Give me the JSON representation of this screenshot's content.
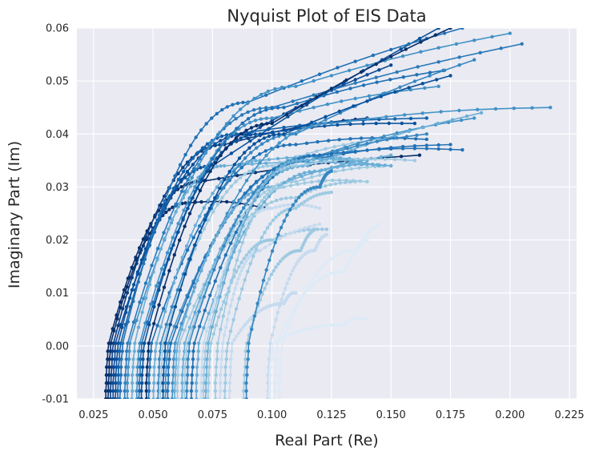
{
  "chart_data": {
    "type": "line",
    "title": "Nyquist Plot of EIS Data",
    "xlabel": "Real Part (Re)",
    "ylabel": "Imaginary Part (Im)",
    "xlim": [
      0.018,
      0.228
    ],
    "ylim": [
      -0.01,
      0.06
    ],
    "xticks": [
      "0.025",
      "0.050",
      "0.075",
      "0.100",
      "0.125",
      "0.150",
      "0.175",
      "0.200",
      "0.225"
    ],
    "yticks": [
      "-0.01",
      "0.00",
      "0.01",
      "0.02",
      "0.03",
      "0.04",
      "0.05",
      "0.06"
    ],
    "grid": true,
    "legend": "none",
    "colormap": "Blues",
    "colors": {
      "background": "#eaeaf2",
      "grid": "#ffffff",
      "text": "#262626"
    },
    "series": [
      {
        "offset": 0.03,
        "k1": 0.2,
        "p1": [
          0.07,
          0.031
        ],
        "p2": [
          0.162,
          0.036
        ],
        "color": "#08306b"
      },
      {
        "offset": 0.031,
        "k1": 0.18,
        "p1": [
          0.065,
          0.027
        ],
        "p2": [
          0.097,
          0.026
        ],
        "color": "#08306b"
      },
      {
        "offset": 0.032,
        "k1": 0.16,
        "p1": [
          0.08,
          0.038
        ],
        "p2": [
          0.14,
          0.043
        ],
        "color": "#0a3e83"
      },
      {
        "offset": 0.033,
        "k1": 0.15,
        "p1": [
          0.09,
          0.04
        ],
        "p2": [
          0.15,
          0.053
        ],
        "color": "#0b4a97"
      },
      {
        "offset": 0.034,
        "k1": 0.16,
        "p1": [
          0.075,
          0.034
        ],
        "p2": [
          0.17,
          0.06
        ],
        "color": "#08519c"
      },
      {
        "offset": 0.035,
        "k1": 0.14,
        "p1": [
          0.085,
          0.04
        ],
        "p2": [
          0.165,
          0.043
        ],
        "color": "#1262aa"
      },
      {
        "offset": 0.036,
        "k1": 0.15,
        "p1": [
          0.09,
          0.046
        ],
        "p2": [
          0.18,
          0.06
        ],
        "color": "#2171b5"
      },
      {
        "offset": 0.038,
        "k1": 0.12,
        "p1": [
          0.1,
          0.045
        ],
        "p2": [
          0.205,
          0.057
        ],
        "color": "#2b7bba"
      },
      {
        "offset": 0.039,
        "k1": 0.13,
        "p1": [
          0.11,
          0.049
        ],
        "p2": [
          0.2,
          0.059
        ],
        "color": "#4292c6"
      },
      {
        "offset": 0.041,
        "k1": 0.13,
        "p1": [
          0.08,
          0.034
        ],
        "p2": [
          0.15,
          0.034
        ],
        "color": "#6aaed6"
      },
      {
        "offset": 0.043,
        "k1": 0.12,
        "p1": [
          0.1,
          0.043
        ],
        "p2": [
          0.17,
          0.049
        ],
        "color": "#4292c6"
      },
      {
        "offset": 0.044,
        "k1": 0.12,
        "p1": [
          0.105,
          0.045
        ],
        "p2": [
          0.172,
          0.052
        ],
        "color": "#2171b5"
      },
      {
        "offset": 0.045,
        "k1": 0.11,
        "p1": [
          0.095,
          0.04
        ],
        "p2": [
          0.16,
          0.042
        ],
        "color": "#08519c"
      },
      {
        "offset": 0.047,
        "k1": 0.11,
        "p1": [
          0.1,
          0.042
        ],
        "p2": [
          0.175,
          0.06
        ],
        "color": "#08306b"
      },
      {
        "offset": 0.048,
        "k1": 0.1,
        "p1": [
          0.11,
          0.038
        ],
        "p2": [
          0.165,
          0.039
        ],
        "color": "#2171b5"
      },
      {
        "offset": 0.05,
        "k1": 0.1,
        "p1": [
          0.095,
          0.035
        ],
        "p2": [
          0.14,
          0.035
        ],
        "color": "#6aaed6"
      },
      {
        "offset": 0.052,
        "k1": 0.1,
        "p1": [
          0.11,
          0.04
        ],
        "p2": [
          0.185,
          0.054
        ],
        "color": "#3787c0"
      },
      {
        "offset": 0.053,
        "k1": 0.09,
        "p1": [
          0.1,
          0.034
        ],
        "p2": [
          0.145,
          0.039
        ],
        "color": "#9ecae1"
      },
      {
        "offset": 0.054,
        "k1": 0.1,
        "p1": [
          0.105,
          0.04
        ],
        "p2": [
          0.175,
          0.051
        ],
        "color": "#08519c"
      },
      {
        "offset": 0.055,
        "k1": 0.09,
        "p1": [
          0.12,
          0.036
        ],
        "p2": [
          0.185,
          0.043
        ],
        "color": "#4292c6"
      },
      {
        "offset": 0.056,
        "k1": 0.09,
        "p1": [
          0.115,
          0.035
        ],
        "p2": [
          0.175,
          0.038
        ],
        "color": "#2171b5"
      },
      {
        "offset": 0.058,
        "k1": 0.09,
        "p1": [
          0.125,
          0.042
        ],
        "p2": [
          0.217,
          0.045
        ],
        "color": "#4292c6"
      },
      {
        "offset": 0.059,
        "k1": 0.08,
        "p1": [
          0.1,
          0.03
        ],
        "p2": [
          0.15,
          0.036
        ],
        "color": "#6aaed6"
      },
      {
        "offset": 0.06,
        "k1": 0.08,
        "p1": [
          0.11,
          0.028
        ],
        "p2": [
          0.135,
          0.031
        ],
        "color": "#9ecae1"
      },
      {
        "offset": 0.062,
        "k1": 0.08,
        "p1": [
          0.115,
          0.034
        ],
        "p2": [
          0.188,
          0.044
        ],
        "color": "#6aaed6"
      },
      {
        "offset": 0.063,
        "k1": 0.08,
        "p1": [
          0.11,
          0.031
        ],
        "p2": [
          0.15,
          0.034
        ],
        "color": "#9ecae1"
      },
      {
        "offset": 0.064,
        "k1": 0.08,
        "p1": [
          0.115,
          0.035
        ],
        "p2": [
          0.165,
          0.04
        ],
        "color": "#3787c0"
      },
      {
        "offset": 0.066,
        "k1": 0.07,
        "p1": [
          0.12,
          0.036
        ],
        "p2": [
          0.18,
          0.037
        ],
        "color": "#2171b5"
      },
      {
        "offset": 0.068,
        "k1": 0.07,
        "p1": [
          0.12,
          0.033
        ],
        "p2": [
          0.15,
          0.034
        ],
        "color": "#6aaed6"
      },
      {
        "offset": 0.07,
        "k1": 0.06,
        "p1": [
          0.1,
          0.026
        ],
        "p2": [
          0.12,
          0.026
        ],
        "color": "#c6dbef"
      },
      {
        "offset": 0.071,
        "k1": 0.08,
        "p1": [
          0.11,
          0.034
        ],
        "p2": [
          0.16,
          0.035
        ],
        "color": "#9ecae1"
      },
      {
        "offset": 0.072,
        "k1": 0.08,
        "p1": [
          0.112,
          0.035
        ],
        "p2": [
          0.145,
          0.034
        ],
        "color": "#6aaed6"
      },
      {
        "offset": 0.073,
        "k1": 0.06,
        "p1": [
          0.1,
          0.02
        ],
        "p2": [
          0.123,
          0.022
        ],
        "color": "#9ecae1"
      },
      {
        "offset": 0.076,
        "k1": 0.07,
        "p1": [
          0.105,
          0.03
        ],
        "p2": [
          0.14,
          0.031
        ],
        "color": "#9ecae1"
      },
      {
        "offset": 0.078,
        "k1": 0.055,
        "p1": [
          0.095,
          0.018
        ],
        "p2": [
          0.12,
          0.023
        ],
        "color": "#c6dbef"
      },
      {
        "offset": 0.08,
        "k1": 0.055,
        "p1": [
          0.11,
          0.026
        ],
        "p2": [
          0.125,
          0.029
        ],
        "color": "#9ecae1"
      },
      {
        "offset": 0.082,
        "k1": 0.05,
        "p1": [
          0.105,
          0.008
        ],
        "p2": [
          0.11,
          0.01
        ],
        "color": "#c6dbef"
      },
      {
        "offset": 0.088,
        "k1": 0.045,
        "p1": [
          0.112,
          0.018
        ],
        "p2": [
          0.118,
          0.022
        ],
        "color": "#9ecae1"
      },
      {
        "offset": 0.089,
        "k1": 0.04,
        "p1": [
          0.12,
          0.03
        ],
        "p2": [
          0.125,
          0.033
        ],
        "color": "#3787c0"
      },
      {
        "offset": 0.098,
        "k1": 0.04,
        "p1": [
          0.118,
          0.018
        ],
        "p2": [
          0.123,
          0.021
        ],
        "color": "#c6dbef"
      },
      {
        "offset": 0.099,
        "k1": 0.03,
        "p1": [
          0.13,
          0.004
        ],
        "p2": [
          0.14,
          0.005
        ],
        "color": "#deebf7"
      },
      {
        "offset": 0.101,
        "k1": 0.035,
        "p1": [
          0.13,
          0.014
        ],
        "p2": [
          0.14,
          0.02
        ],
        "color": "#deebf7"
      },
      {
        "offset": 0.103,
        "k1": 0.03,
        "p1": [
          0.135,
          0.018
        ],
        "p2": [
          0.145,
          0.023
        ],
        "color": "#deebf7"
      }
    ]
  }
}
